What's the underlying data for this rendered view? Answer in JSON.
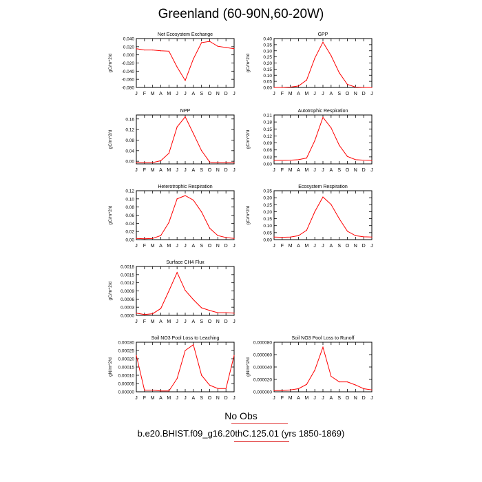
{
  "title": "Greenland (60-90N,60-20W)",
  "footer": {
    "no_obs": "No Obs",
    "case": "b.e20.BHIST.f09_g16.20thC.125.01 (yrs 1850-1869)"
  },
  "colors": {
    "series": "#ff0000",
    "frame": "#000000"
  },
  "chart_data": [
    {
      "type": "line",
      "title": "Net Ecosystem Exchange",
      "ylabel": "gC/m^2/d",
      "categories": [
        "J",
        "F",
        "M",
        "A",
        "M",
        "J",
        "J",
        "A",
        "S",
        "O",
        "N",
        "D",
        "J"
      ],
      "yticks": [
        "0.040",
        "0.020",
        "0.000",
        "-0.020",
        "-0.040",
        "-0.060",
        "-0.080"
      ],
      "ylim": [
        -0.08,
        0.04
      ],
      "values": [
        0.015,
        0.012,
        0.012,
        0.01,
        0.009,
        -0.03,
        -0.063,
        -0.01,
        0.03,
        0.033,
        0.021,
        0.018,
        0.015
      ]
    },
    {
      "type": "line",
      "title": "GPP",
      "ylabel": "gC/m^2/d",
      "categories": [
        "J",
        "F",
        "M",
        "A",
        "M",
        "J",
        "J",
        "A",
        "S",
        "O",
        "N",
        "D",
        "J"
      ],
      "yticks": [
        "0.40",
        "0.35",
        "0.30",
        "0.25",
        "0.20",
        "0.15",
        "0.10",
        "0.05",
        "0.00"
      ],
      "ylim": [
        0,
        0.4
      ],
      "values": [
        0.0,
        0.0,
        0.003,
        0.012,
        0.06,
        0.24,
        0.37,
        0.26,
        0.12,
        0.025,
        0.003,
        0.0,
        0.0
      ]
    },
    {
      "type": "line",
      "title": "NPP",
      "ylabel": "gC/m^2/d",
      "categories": [
        "J",
        "F",
        "M",
        "A",
        "M",
        "J",
        "J",
        "A",
        "S",
        "O",
        "N",
        "D",
        "J"
      ],
      "yticks": [
        "0.16",
        "0.12",
        "0.08",
        "0.04",
        "0.00"
      ],
      "ylim": [
        -0.01,
        0.175
      ],
      "values": [
        -0.006,
        -0.005,
        -0.005,
        0.002,
        0.03,
        0.13,
        0.168,
        0.105,
        0.04,
        -0.003,
        -0.006,
        -0.006,
        -0.006
      ]
    },
    {
      "type": "line",
      "title": "Autotrophic Respiration",
      "ylabel": "gC/m^2/d",
      "categories": [
        "J",
        "F",
        "M",
        "A",
        "M",
        "J",
        "J",
        "A",
        "S",
        "O",
        "N",
        "D",
        "J"
      ],
      "yticks": [
        "0.21",
        "0.18",
        "0.15",
        "0.12",
        "0.09",
        "0.06",
        "0.03",
        "0.00"
      ],
      "ylim": [
        0,
        0.21
      ],
      "values": [
        0.015,
        0.015,
        0.016,
        0.018,
        0.025,
        0.1,
        0.2,
        0.155,
        0.08,
        0.032,
        0.018,
        0.016,
        0.015
      ]
    },
    {
      "type": "line",
      "title": "Heterotrophic Respiration",
      "ylabel": "gC/m^2/d",
      "categories": [
        "J",
        "F",
        "M",
        "A",
        "M",
        "J",
        "J",
        "A",
        "S",
        "O",
        "N",
        "D",
        "J"
      ],
      "yticks": [
        "0.12",
        "0.10",
        "0.08",
        "0.06",
        "0.04",
        "0.02",
        "0.00"
      ],
      "ylim": [
        0,
        0.12
      ],
      "values": [
        0.003,
        0.002,
        0.003,
        0.01,
        0.042,
        0.1,
        0.108,
        0.097,
        0.068,
        0.028,
        0.01,
        0.005,
        0.003
      ]
    },
    {
      "type": "line",
      "title": "Ecosystem Respiration",
      "ylabel": "gC/m^2/d",
      "categories": [
        "J",
        "F",
        "M",
        "A",
        "M",
        "J",
        "J",
        "A",
        "S",
        "O",
        "N",
        "D",
        "J"
      ],
      "yticks": [
        "0.35",
        "0.30",
        "0.25",
        "0.20",
        "0.15",
        "0.10",
        "0.05",
        "0.00"
      ],
      "ylim": [
        0,
        0.35
      ],
      "values": [
        0.018,
        0.017,
        0.018,
        0.028,
        0.067,
        0.2,
        0.305,
        0.252,
        0.15,
        0.06,
        0.028,
        0.02,
        0.018
      ]
    },
    {
      "type": "line",
      "title": "Surface CH4 Flux",
      "ylabel": "gC/m^2/d",
      "categories": [
        "J",
        "F",
        "M",
        "A",
        "M",
        "J",
        "J",
        "A",
        "S",
        "O",
        "N",
        "D",
        "J"
      ],
      "yticks": [
        "0.0018",
        "0.0015",
        "0.0012",
        "0.0009",
        "0.0006",
        "0.0003",
        "0.0000"
      ],
      "ylim": [
        0,
        0.0018
      ],
      "values": [
        8e-05,
        3e-05,
        6e-05,
        0.00025,
        0.0009,
        0.00158,
        0.00092,
        0.00058,
        0.00028,
        0.00018,
        0.0001,
        0.0001,
        8e-05
      ]
    },
    {
      "type": "line",
      "title": "Soil NO3 Pool Loss to Leaching",
      "ylabel": "gN/m^2/d",
      "categories": [
        "J",
        "F",
        "M",
        "A",
        "M",
        "J",
        "J",
        "A",
        "S",
        "O",
        "N",
        "D",
        "J"
      ],
      "yticks": [
        "0.00030",
        "0.00025",
        "0.00020",
        "0.00015",
        "0.00010",
        "0.00005",
        "0.00000"
      ],
      "ylim": [
        0,
        0.0003
      ],
      "values": [
        0.00022,
        1e-05,
        1e-05,
        5e-06,
        5e-06,
        8e-05,
        0.00025,
        0.000285,
        0.0001,
        4e-05,
        2e-05,
        2e-05,
        0.00022
      ]
    },
    {
      "type": "line",
      "title": "Soil NO3 Pool Loss to Runoff",
      "ylabel": "gN/m^2/d",
      "categories": [
        "J",
        "F",
        "M",
        "A",
        "M",
        "J",
        "J",
        "A",
        "S",
        "O",
        "N",
        "D",
        "J"
      ],
      "yticks": [
        "0.000080",
        "0.000060",
        "0.000040",
        "0.000020",
        "0.000000"
      ],
      "ylim": [
        0,
        8e-05
      ],
      "values": [
        2e-06,
        2e-06,
        3e-06,
        5e-06,
        1.2e-05,
        3.5e-05,
        7.2e-05,
        2.5e-05,
        1.6e-05,
        1.6e-05,
        1.1e-05,
        5e-06,
        3e-06
      ]
    }
  ]
}
